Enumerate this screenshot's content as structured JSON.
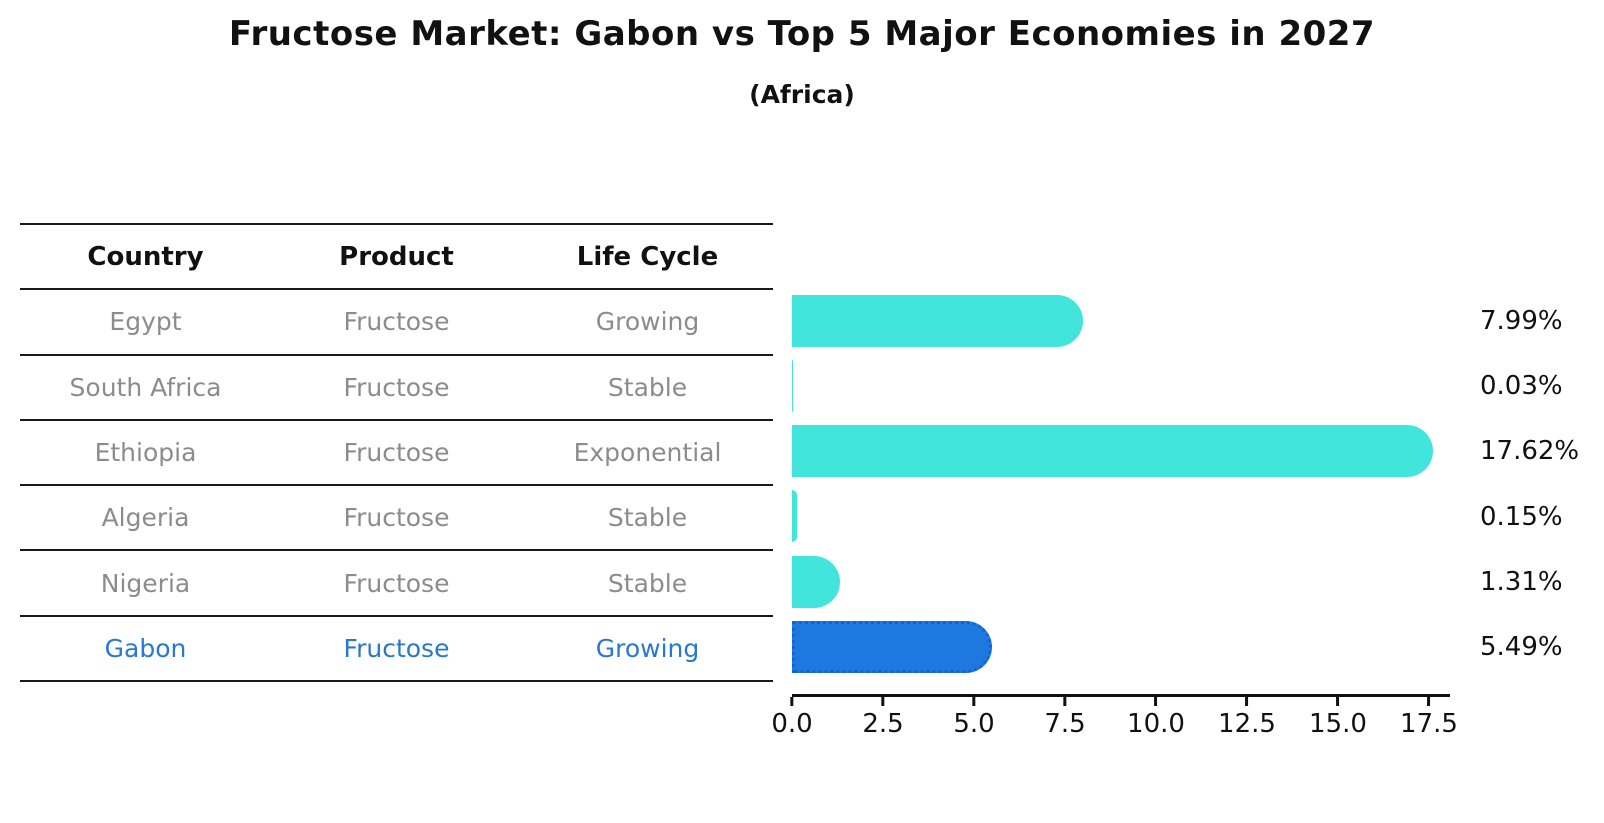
{
  "title": "Fructose Market: Gabon vs Top 5 Major Economies in 2027",
  "subtitle": "(Africa)",
  "table": {
    "headers": [
      "Country",
      "Product",
      "Life Cycle"
    ],
    "rows": [
      {
        "country": "Egypt",
        "product": "Fructose",
        "life_cycle": "Growing",
        "highlight": false
      },
      {
        "country": "South Africa",
        "product": "Fructose",
        "life_cycle": "Stable",
        "highlight": false
      },
      {
        "country": "Ethiopia",
        "product": "Fructose",
        "life_cycle": "Exponential",
        "highlight": false
      },
      {
        "country": "Algeria",
        "product": "Fructose",
        "life_cycle": "Stable",
        "highlight": false
      },
      {
        "country": "Nigeria",
        "product": "Fructose",
        "life_cycle": "Stable",
        "highlight": false
      },
      {
        "country": "Gabon",
        "product": "Fructose",
        "life_cycle": "Growing",
        "highlight": true
      }
    ]
  },
  "chart_data": {
    "type": "bar",
    "orientation": "horizontal",
    "title": "Fructose Market: Gabon vs Top 5 Major Economies in 2027",
    "subtitle": "(Africa)",
    "categories": [
      "Egypt",
      "South Africa",
      "Ethiopia",
      "Algeria",
      "Nigeria",
      "Gabon"
    ],
    "values": [
      7.99,
      0.03,
      17.62,
      0.15,
      1.31,
      5.49
    ],
    "value_labels": [
      "7.99%",
      "0.03%",
      "17.62%",
      "0.15%",
      "1.31%",
      "5.49%"
    ],
    "xlabel": "",
    "ylabel": "",
    "xlim": [
      0,
      18.0
    ],
    "x_ticks": [
      "0.0",
      "2.5",
      "5.0",
      "7.5",
      "10.0",
      "12.5",
      "15.0",
      "17.5"
    ],
    "grid": false,
    "legend": "none",
    "bar_color": "#42E5DC",
    "highlight_bar_color": "#1E78E0",
    "highlight_index": 5
  },
  "colors": {
    "bar": "#42E5DC",
    "highlight_bar": "#1E78E0",
    "highlight_border": "#1262D8",
    "highlight_text": "#2878D0",
    "row_text": "#8C8C8C",
    "text": "#111111"
  }
}
